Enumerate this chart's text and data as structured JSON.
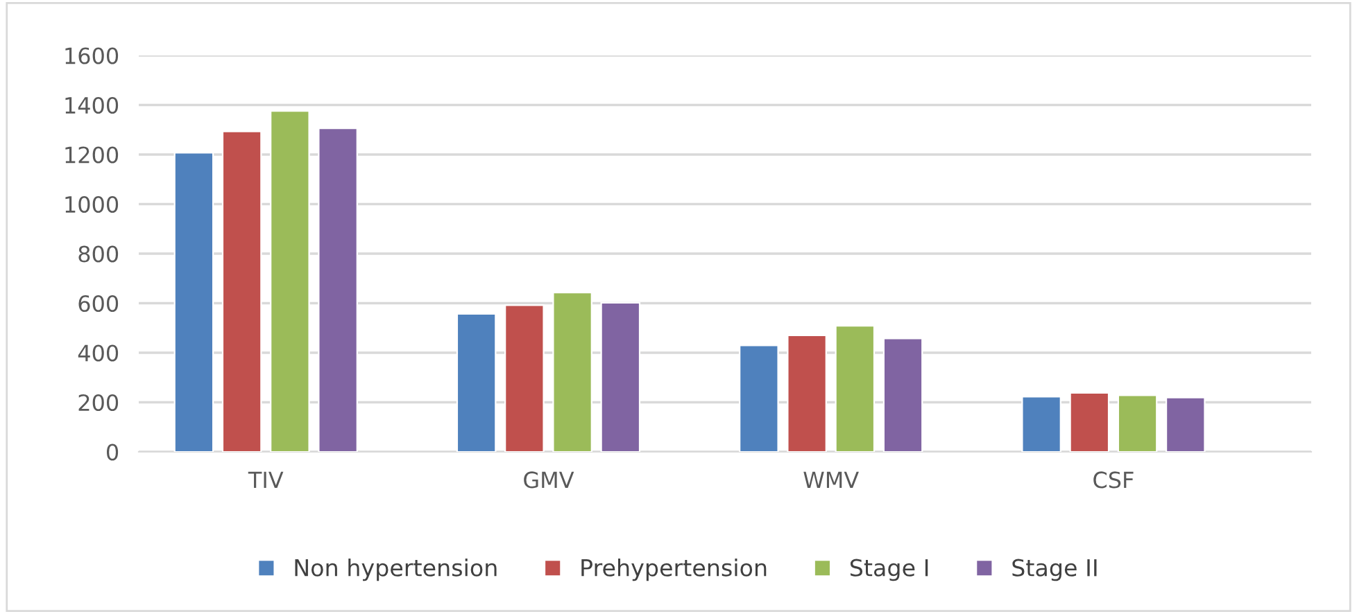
{
  "chart_data": {
    "type": "bar",
    "categories": [
      "TIV",
      "GMV",
      "WMV",
      "CSF"
    ],
    "series": [
      {
        "name": "Non hypertension",
        "color": "#4f81bd",
        "values": [
          1207,
          557,
          430,
          223
        ]
      },
      {
        "name": "Prehypertension",
        "color": "#c0504d",
        "values": [
          1293,
          592,
          470,
          238
        ]
      },
      {
        "name": "Stage I",
        "color": "#9bbb59",
        "values": [
          1376,
          643,
          509,
          228
        ]
      },
      {
        "name": "Stage II",
        "color": "#8064a2",
        "values": [
          1306,
          602,
          458,
          219
        ]
      }
    ],
    "ylim": [
      0,
      1600
    ],
    "yticks": [
      0,
      200,
      400,
      600,
      800,
      1000,
      1200,
      1400,
      1600
    ],
    "grid": "y",
    "legend": "bottom"
  }
}
